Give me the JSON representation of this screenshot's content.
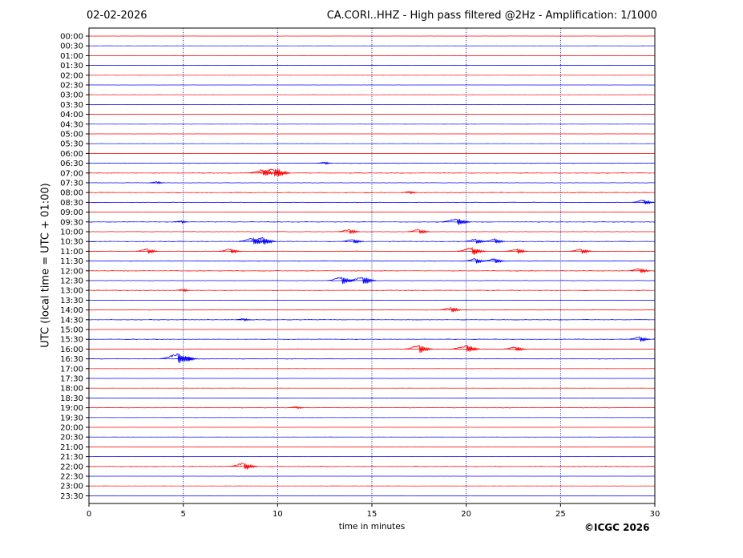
{
  "header": {
    "date": "02-02-2026",
    "title": "CA.CORI..HHZ - High pass filtered @2Hz - Amplification: 1/1000"
  },
  "footer": {
    "copyright": "©ICGC 2026"
  },
  "colors": {
    "red_trace": "#ff0000",
    "blue_trace": "#0000ff",
    "grid": "#000080"
  },
  "chart_data": {
    "type": "line",
    "title": "CA.CORI..HHZ - High pass filtered @2Hz - Amplification: 1/1000",
    "xlabel": "time in minutes",
    "ylabel": "UTC (local time = UTC + 01:00)",
    "xlim": [
      0,
      30
    ],
    "xticks": [
      0,
      5,
      10,
      15,
      20,
      25,
      30
    ],
    "vertical_gridlines_at": [
      5,
      10,
      15,
      20,
      25
    ],
    "grid": true,
    "rows": [
      "00:00",
      "00:30",
      "01:00",
      "01:30",
      "02:00",
      "02:30",
      "03:00",
      "03:30",
      "04:00",
      "04:30",
      "05:00",
      "05:30",
      "06:00",
      "06:30",
      "07:00",
      "07:30",
      "08:00",
      "08:30",
      "09:00",
      "09:30",
      "10:00",
      "10:30",
      "11:00",
      "11:30",
      "12:00",
      "12:30",
      "13:00",
      "13:30",
      "14:00",
      "14:30",
      "15:00",
      "15:30",
      "16:00",
      "16:30",
      "17:00",
      "17:30",
      "18:00",
      "18:30",
      "19:00",
      "19:30",
      "20:00",
      "20:30",
      "21:00",
      "21:30",
      "22:00",
      "22:30",
      "23:00",
      "23:30"
    ],
    "trace_colors_alternating": [
      "red",
      "blue"
    ],
    "bursts": [
      {
        "row": "06:30",
        "minute": 12.5,
        "amplitude": 1
      },
      {
        "row": "07:00",
        "minute": 9.2,
        "amplitude": 3
      },
      {
        "row": "07:00",
        "minute": 9.8,
        "amplitude": 4
      },
      {
        "row": "07:30",
        "minute": 3.6,
        "amplitude": 1
      },
      {
        "row": "08:00",
        "minute": 17.0,
        "amplitude": 1
      },
      {
        "row": "08:30",
        "minute": 29.4,
        "amplitude": 2
      },
      {
        "row": "09:30",
        "minute": 19.5,
        "amplitude": 3
      },
      {
        "row": "09:30",
        "minute": 4.9,
        "amplitude": 1
      },
      {
        "row": "10:00",
        "minute": 13.8,
        "amplitude": 2
      },
      {
        "row": "10:00",
        "minute": 17.5,
        "amplitude": 2
      },
      {
        "row": "10:30",
        "minute": 8.7,
        "amplitude": 3
      },
      {
        "row": "10:30",
        "minute": 9.2,
        "amplitude": 3
      },
      {
        "row": "10:30",
        "minute": 14.0,
        "amplitude": 2
      },
      {
        "row": "10:30",
        "minute": 20.5,
        "amplitude": 2
      },
      {
        "row": "10:30",
        "minute": 21.5,
        "amplitude": 2
      },
      {
        "row": "11:00",
        "minute": 3.1,
        "amplitude": 2
      },
      {
        "row": "11:00",
        "minute": 7.5,
        "amplitude": 2
      },
      {
        "row": "11:00",
        "minute": 20.3,
        "amplitude": 3
      },
      {
        "row": "11:00",
        "minute": 22.7,
        "amplitude": 2
      },
      {
        "row": "11:00",
        "minute": 26.1,
        "amplitude": 2
      },
      {
        "row": "11:30",
        "minute": 20.5,
        "amplitude": 2
      },
      {
        "row": "11:30",
        "minute": 21.5,
        "amplitude": 2
      },
      {
        "row": "12:00",
        "minute": 29.2,
        "amplitude": 2
      },
      {
        "row": "12:30",
        "minute": 13.4,
        "amplitude": 3
      },
      {
        "row": "12:30",
        "minute": 14.5,
        "amplitude": 3
      },
      {
        "row": "13:00",
        "minute": 5.0,
        "amplitude": 1
      },
      {
        "row": "14:00",
        "minute": 19.2,
        "amplitude": 2
      },
      {
        "row": "14:30",
        "minute": 8.2,
        "amplitude": 1
      },
      {
        "row": "15:30",
        "minute": 29.2,
        "amplitude": 2
      },
      {
        "row": "16:00",
        "minute": 17.5,
        "amplitude": 3
      },
      {
        "row": "16:00",
        "minute": 20.0,
        "amplitude": 3
      },
      {
        "row": "16:00",
        "minute": 22.6,
        "amplitude": 2
      },
      {
        "row": "16:30",
        "minute": 4.7,
        "amplitude": 4
      },
      {
        "row": "16:30",
        "minute": 5.2,
        "amplitude": 2
      },
      {
        "row": "19:00",
        "minute": 11.0,
        "amplitude": 1
      },
      {
        "row": "22:00",
        "minute": 8.2,
        "amplitude": 3
      }
    ]
  }
}
